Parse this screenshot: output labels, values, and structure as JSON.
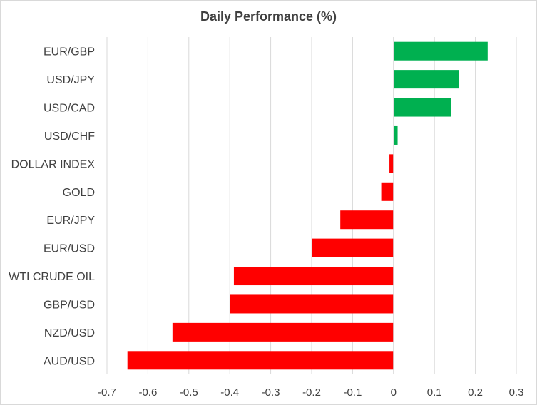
{
  "chart_data": {
    "type": "bar",
    "orientation": "horizontal",
    "title": "Daily Performance (%)",
    "categories": [
      "EUR/GBP",
      "USD/JPY",
      "USD/CAD",
      "USD/CHF",
      "DOLLAR INDEX",
      "GOLD",
      "EUR/JPY",
      "EUR/USD",
      "WTI CRUDE OIL",
      "GBP/USD",
      "NZD/USD",
      "AUD/USD"
    ],
    "values": [
      0.23,
      0.16,
      0.14,
      0.01,
      -0.01,
      -0.03,
      -0.13,
      -0.2,
      -0.39,
      -0.4,
      -0.54,
      -0.65
    ],
    "xlim": [
      -0.7,
      0.3
    ],
    "xticks": [
      -0.7,
      -0.6,
      -0.5,
      -0.4,
      -0.3,
      -0.2,
      -0.1,
      0,
      0.1,
      0.2,
      0.3
    ],
    "xtick_labels": [
      "-0.7",
      "-0.6",
      "-0.5",
      "-0.4",
      "-0.3",
      "-0.2",
      "-0.1",
      "0",
      "0.1",
      "0.2",
      "0.3"
    ],
    "grid": true,
    "colors": {
      "positive": "#00b050",
      "negative": "#ff0000",
      "grid": "#d9d9d9",
      "text": "#404040"
    }
  }
}
